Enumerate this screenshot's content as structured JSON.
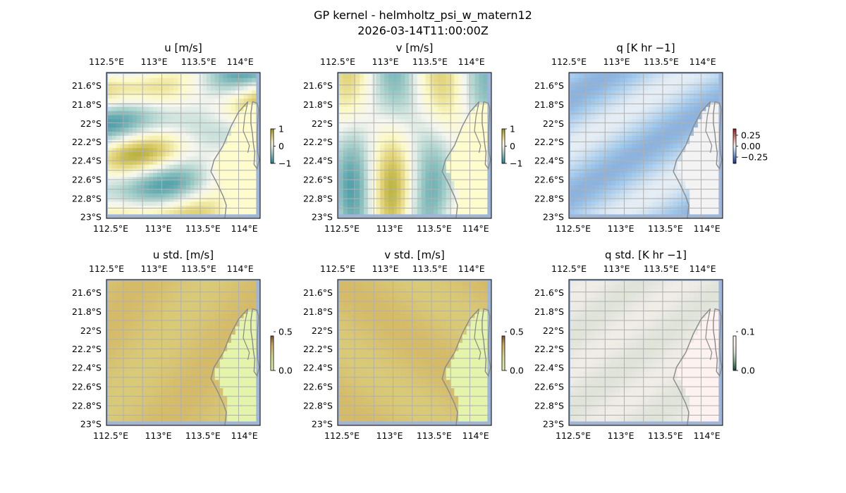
{
  "figure": {
    "title": "GP kernel - helmholtz_psi_w_matern12",
    "timestamp": "2026-03-14T11:00:00Z"
  },
  "chart_data": [
    {
      "type": "heatmap",
      "title": "u [m/s]",
      "field": "u",
      "lon_ticks": [
        "112.5°E",
        "113°E",
        "113.5°E",
        "114°E"
      ],
      "lat_ticks": [
        "21.6°S",
        "21.8°S",
        "22°S",
        "22.2°S",
        "22.4°S",
        "22.6°S",
        "22.8°S",
        "23°S"
      ],
      "lon_range": [
        112.35,
        114.2
      ],
      "lat_range": [
        -23.0,
        -21.45
      ],
      "colorbar": {
        "ticks": [
          "1",
          "0",
          "−1"
        ],
        "range": [
          -1,
          1
        ],
        "colormap": "teal-white-olive"
      }
    },
    {
      "type": "heatmap",
      "title": "v [m/s]",
      "field": "v",
      "lon_ticks": [
        "112.5°E",
        "113°E",
        "113.5°E",
        "114°E"
      ],
      "lat_ticks": [
        "21.6°S",
        "21.8°S",
        "22°S",
        "22.2°S",
        "22.4°S",
        "22.6°S",
        "22.8°S",
        "23°S"
      ],
      "lon_range": [
        112.35,
        114.2
      ],
      "lat_range": [
        -23.0,
        -21.45
      ],
      "colorbar": {
        "ticks": [
          "1",
          "0",
          "−1"
        ],
        "range": [
          -1,
          1
        ],
        "colormap": "teal-white-olive"
      }
    },
    {
      "type": "heatmap",
      "title": "q [K hr −1]",
      "field": "q",
      "lon_ticks": [
        "112.5°E",
        "113°E",
        "113.5°E",
        "114°E"
      ],
      "lat_ticks": [
        "21.6°S",
        "21.8°S",
        "22°S",
        "22.2°S",
        "22.4°S",
        "22.6°S",
        "22.8°S",
        "23°S"
      ],
      "lon_range": [
        112.35,
        114.2
      ],
      "lat_range": [
        -23.0,
        -21.45
      ],
      "colorbar": {
        "ticks": [
          "0.25",
          "0.00",
          "−0.25"
        ],
        "range": [
          -0.35,
          0.35
        ],
        "colormap": "blue-white-red"
      }
    },
    {
      "type": "heatmap",
      "title": "u std. [m/s]",
      "field": "u_std",
      "lon_ticks": [
        "112.5°E",
        "113°E",
        "113.5°E",
        "114°E"
      ],
      "lat_ticks": [
        "21.6°S",
        "21.8°S",
        "22°S",
        "22.2°S",
        "22.4°S",
        "22.6°S",
        "22.8°S",
        "23°S"
      ],
      "lon_range": [
        112.35,
        114.2
      ],
      "lat_range": [
        -23.0,
        -21.45
      ],
      "colorbar": {
        "ticks": [
          "0.5",
          "0.0"
        ],
        "range": [
          0,
          0.5
        ],
        "colormap": "olive-brown"
      }
    },
    {
      "type": "heatmap",
      "title": "v std. [m/s]",
      "field": "v_std",
      "lon_ticks": [
        "112.5°E",
        "113°E",
        "113.5°E",
        "114°E"
      ],
      "lat_ticks": [
        "21.6°S",
        "21.8°S",
        "22°S",
        "22.2°S",
        "22.4°S",
        "22.6°S",
        "22.8°S",
        "23°S"
      ],
      "lon_range": [
        112.35,
        114.2
      ],
      "lat_range": [
        -23.0,
        -21.45
      ],
      "colorbar": {
        "ticks": [
          "0.5",
          "0.0"
        ],
        "range": [
          0,
          0.5
        ],
        "colormap": "olive-brown"
      }
    },
    {
      "type": "heatmap",
      "title": "q std. [K hr −1]",
      "field": "q_std",
      "lon_ticks": [
        "112.5°E",
        "113°E",
        "113.5°E",
        "114°E"
      ],
      "lat_ticks": [
        "21.6°S",
        "21.8°S",
        "22°S",
        "22.2°S",
        "22.4°S",
        "22.6°S",
        "22.8°S",
        "23°S"
      ],
      "lon_range": [
        112.35,
        114.2
      ],
      "lat_range": [
        -23.0,
        -21.45
      ],
      "colorbar": {
        "ticks": [
          "0.1",
          "0.0"
        ],
        "range": [
          0,
          0.1
        ],
        "colormap": "green-white-pink"
      }
    }
  ]
}
